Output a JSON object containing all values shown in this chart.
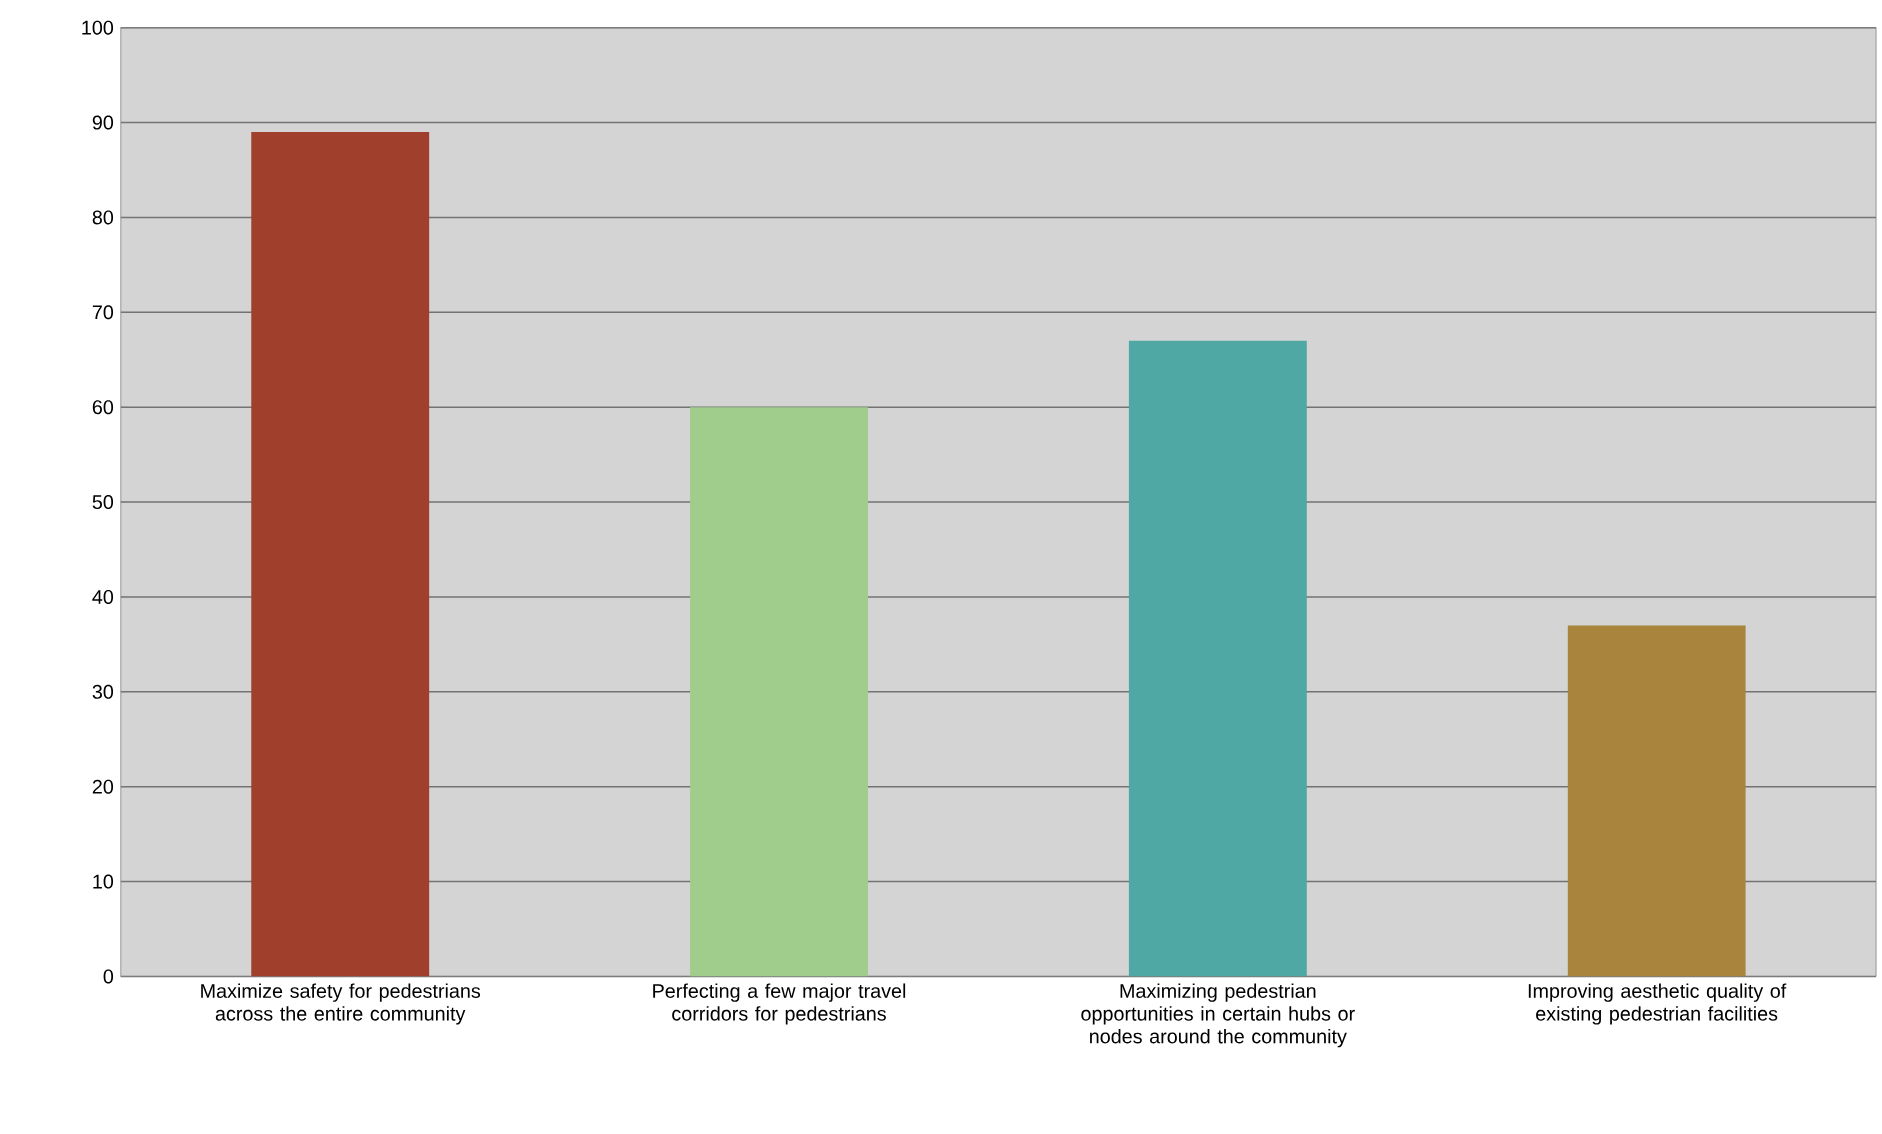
{
  "chart_data": {
    "type": "bar",
    "categories": [
      "Maximize safety for pedestrians across the entire community",
      "Perfecting a few major travel corridors for pedestrians",
      "Maximizing pedestrian opportunities in certain hubs or nodes around the community",
      "Improving aesthetic quality of existing pedestrian facilities"
    ],
    "values": [
      89,
      60,
      67,
      37
    ],
    "colors": [
      "#a0402c",
      "#a0cc8c",
      "#50a8a4",
      "#a8843c"
    ],
    "ylim": [
      0,
      100
    ],
    "yticks": [
      0,
      10,
      20,
      30,
      40,
      50,
      60,
      70,
      80,
      90,
      100
    ],
    "grid": "y"
  }
}
